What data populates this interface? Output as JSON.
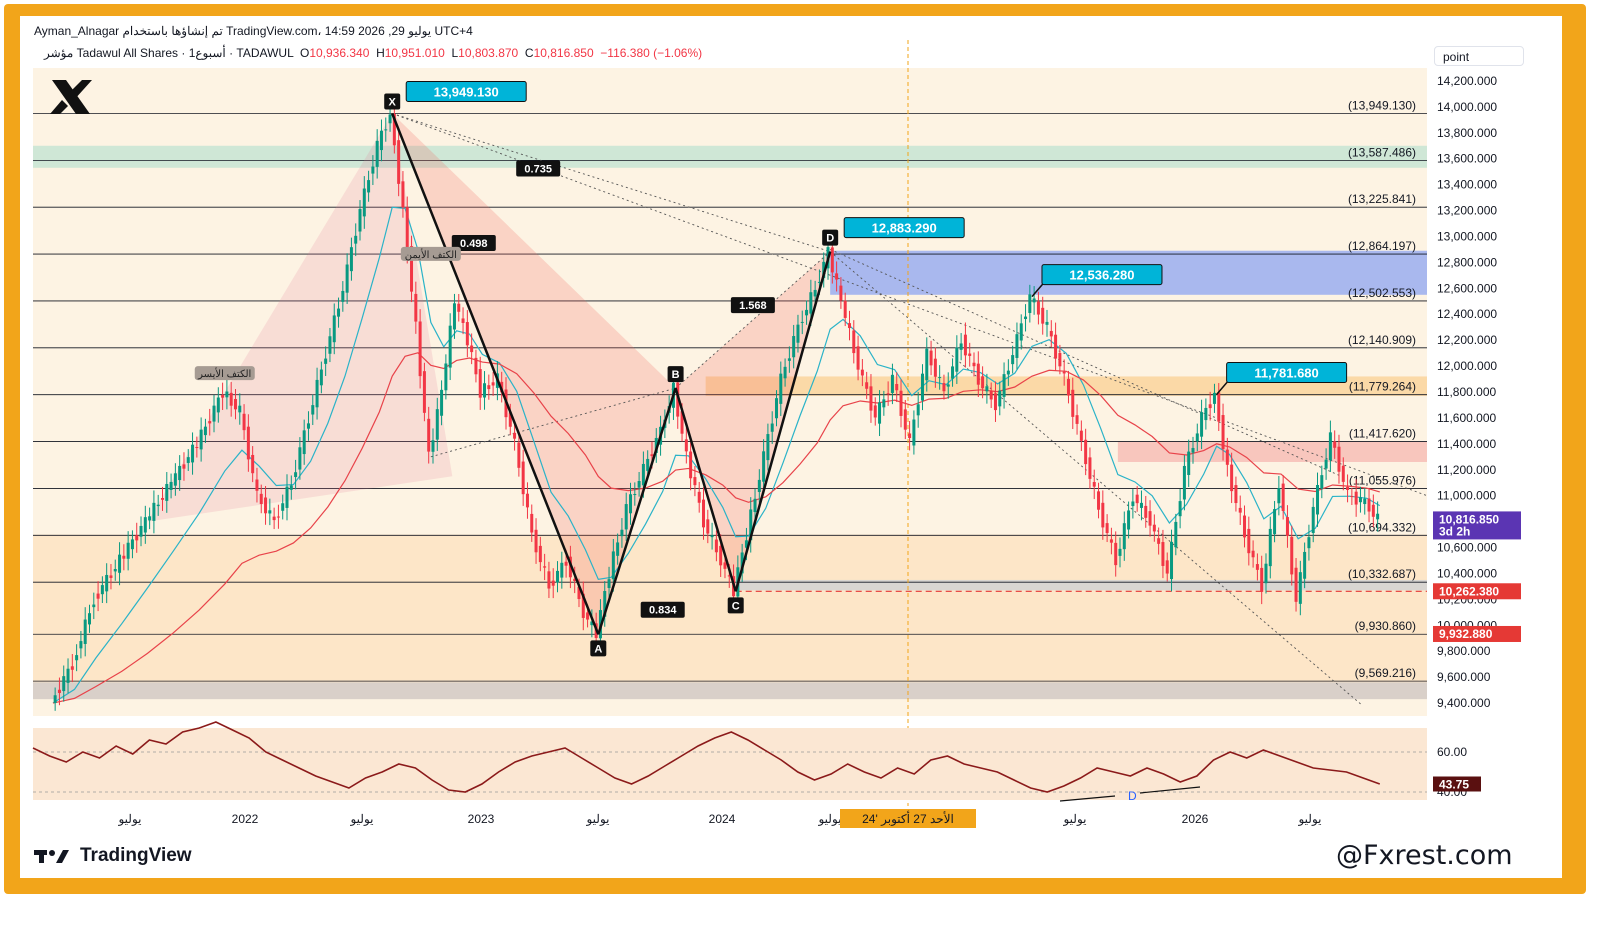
{
  "header": {
    "line1": "Ayman_Alnagar تم إنشاؤها باستخدام TradingView.com، 14:59 2026 ,29 يوليو UTC+4",
    "symbol": "مؤشر Tadawul All Shares · 1أسبوع · TADAWUL",
    "open_label": "O",
    "open": "10,936.340",
    "high_label": "H",
    "high": "10,951.010",
    "low_label": "L",
    "low": "10,803.870",
    "close_label": "C",
    "close": "10,816.850",
    "change": "−116.380 (−1.06%)"
  },
  "unit_selector": "point",
  "brand": "TradingView",
  "watermark": "@Fxrest.com",
  "colors": {
    "frame": "#f2a51a",
    "label_bg": "#00b4d8",
    "up": "#089981",
    "down": "#f23645",
    "ema_fast": "#2ab3c8",
    "ema_slow": "#e8434a",
    "rsi": "#8b1a1a",
    "price_tag": "#5b35b3",
    "red_tag": "#e53935"
  },
  "chart_data": {
    "type": "line",
    "title": "Tadawul All Shares weekly",
    "x_ticks": [
      "يوليو",
      "2022",
      "يوليو",
      "2023",
      "يوليو",
      "2024",
      "يوليو",
      "يوليو",
      "2026",
      "يوليو"
    ],
    "y_ticks": [
      9400,
      9600,
      9800,
      10000,
      10200,
      10400,
      10600,
      10800,
      11000,
      11200,
      11400,
      11600,
      11800,
      12000,
      12200,
      12400,
      12600,
      12800,
      13000,
      13200,
      13400,
      13600,
      13800,
      14000,
      14200
    ],
    "y_tick_labels": [
      "9,400.000",
      "9,600.000",
      "9,800.000",
      "10,000.000",
      "10,200.000",
      "10,400.000",
      "10,600.000",
      "10,800.000",
      "11,000.000",
      "11,200.000",
      "11,400.000",
      "11,600.000",
      "11,800.000",
      "12,000.000",
      "12,200.000",
      "12,400.000",
      "12,600.000",
      "12,800.000",
      "13,000.000",
      "13,200.000",
      "13,400.000",
      "13,600.000",
      "13,800.000",
      "14,000.000",
      "14,200.000"
    ],
    "ylim": [
      9300,
      14300
    ],
    "levels": [
      "(13,949.130)",
      "(13,587.486)",
      "(13,225.841)",
      "(12,864.197)",
      "(12,502.553)",
      "(12,140.909)",
      "(11,779.264)",
      "(11,417.620)",
      "(11,055.976)",
      "(10,694.332)",
      "(10,332.687)",
      "(9,930.860)",
      "(9,569.216)"
    ],
    "level_values": [
      13949.13,
      13587.486,
      13225.841,
      12864.197,
      12502.553,
      12140.909,
      11779.264,
      11417.62,
      11055.976,
      10694.332,
      10332.687,
      9930.86,
      9569.216
    ],
    "price_points": [
      {
        "x": 0,
        "y": 9400
      },
      {
        "x": 5,
        "y": 9700
      },
      {
        "x": 10,
        "y": 10200
      },
      {
        "x": 16,
        "y": 10500
      },
      {
        "x": 22,
        "y": 10800
      },
      {
        "x": 28,
        "y": 11100
      },
      {
        "x": 34,
        "y": 11400
      },
      {
        "x": 40,
        "y": 11800
      },
      {
        "x": 44,
        "y": 11650
      },
      {
        "x": 48,
        "y": 11000
      },
      {
        "x": 52,
        "y": 10800
      },
      {
        "x": 56,
        "y": 11100
      },
      {
        "x": 60,
        "y": 11600
      },
      {
        "x": 64,
        "y": 12100
      },
      {
        "x": 68,
        "y": 12600
      },
      {
        "x": 72,
        "y": 13200
      },
      {
        "x": 76,
        "y": 13700
      },
      {
        "x": 79,
        "y": 13949
      },
      {
        "x": 82,
        "y": 13200
      },
      {
        "x": 85,
        "y": 12300
      },
      {
        "x": 88,
        "y": 11300
      },
      {
        "x": 91,
        "y": 11800
      },
      {
        "x": 94,
        "y": 12500
      },
      {
        "x": 97,
        "y": 12200
      },
      {
        "x": 100,
        "y": 11800
      },
      {
        "x": 104,
        "y": 11900
      },
      {
        "x": 108,
        "y": 11400
      },
      {
        "x": 112,
        "y": 10700
      },
      {
        "x": 116,
        "y": 10300
      },
      {
        "x": 120,
        "y": 10500
      },
      {
        "x": 124,
        "y": 10100
      },
      {
        "x": 127,
        "y": 9930
      },
      {
        "x": 130,
        "y": 10400
      },
      {
        "x": 134,
        "y": 10900
      },
      {
        "x": 138,
        "y": 11200
      },
      {
        "x": 142,
        "y": 11500
      },
      {
        "x": 145,
        "y": 11830
      },
      {
        "x": 148,
        "y": 11300
      },
      {
        "x": 152,
        "y": 10800
      },
      {
        "x": 156,
        "y": 10500
      },
      {
        "x": 159,
        "y": 10262
      },
      {
        "x": 162,
        "y": 10700
      },
      {
        "x": 166,
        "y": 11300
      },
      {
        "x": 170,
        "y": 11900
      },
      {
        "x": 174,
        "y": 12300
      },
      {
        "x": 178,
        "y": 12600
      },
      {
        "x": 181,
        "y": 12883
      },
      {
        "x": 184,
        "y": 12500
      },
      {
        "x": 188,
        "y": 12000
      },
      {
        "x": 192,
        "y": 11600
      },
      {
        "x": 196,
        "y": 11900
      },
      {
        "x": 200,
        "y": 11400
      },
      {
        "x": 204,
        "y": 12100
      },
      {
        "x": 208,
        "y": 11800
      },
      {
        "x": 212,
        "y": 12200
      },
      {
        "x": 216,
        "y": 11900
      },
      {
        "x": 220,
        "y": 11700
      },
      {
        "x": 224,
        "y": 12100
      },
      {
        "x": 228,
        "y": 12536
      },
      {
        "x": 232,
        "y": 12300
      },
      {
        "x": 236,
        "y": 11900
      },
      {
        "x": 240,
        "y": 11400
      },
      {
        "x": 244,
        "y": 10900
      },
      {
        "x": 248,
        "y": 10500
      },
      {
        "x": 252,
        "y": 11000
      },
      {
        "x": 256,
        "y": 10800
      },
      {
        "x": 260,
        "y": 10400
      },
      {
        "x": 264,
        "y": 11200
      },
      {
        "x": 268,
        "y": 11600
      },
      {
        "x": 271,
        "y": 11781
      },
      {
        "x": 274,
        "y": 11200
      },
      {
        "x": 278,
        "y": 10700
      },
      {
        "x": 282,
        "y": 10300
      },
      {
        "x": 286,
        "y": 11100
      },
      {
        "x": 290,
        "y": 10200
      },
      {
        "x": 294,
        "y": 10900
      },
      {
        "x": 298,
        "y": 11450
      },
      {
        "x": 302,
        "y": 11000
      },
      {
        "x": 306,
        "y": 10950
      },
      {
        "x": 309,
        "y": 10817
      }
    ],
    "pattern_points": [
      {
        "label": "X",
        "price_label": "13,949.130"
      },
      {
        "label": "A"
      },
      {
        "label": "B"
      },
      {
        "label": "C"
      },
      {
        "label": "D",
        "price_label": "12,883.290"
      }
    ],
    "ratios": [
      "0.735",
      "0.498",
      "1.568",
      "0.834"
    ],
    "callouts": [
      "12,536.280",
      "11,781.680"
    ],
    "pattern_text": [
      "الكتف الأيسر",
      "الكتف الأيمن"
    ],
    "price_tags": {
      "last": "10,816.850",
      "countdown": "3d 2h",
      "red1": "10,262.380",
      "red2": "9,932.880"
    },
    "date_tag": "الأحد 27 أكتوبر '24",
    "rsi": {
      "ticks": [
        "60.00",
        "40.00"
      ],
      "value": "43.75",
      "divergence_label": "D",
      "values": [
        62,
        58,
        55,
        60,
        57,
        63,
        59,
        66,
        64,
        70,
        72,
        75,
        71,
        67,
        60,
        56,
        52,
        48,
        45,
        42,
        47,
        50,
        54,
        52,
        46,
        41,
        40,
        44,
        50,
        55,
        58,
        60,
        62,
        57,
        52,
        47,
        44,
        48,
        53,
        58,
        63,
        67,
        70,
        66,
        61,
        56,
        50,
        46,
        49,
        54,
        50,
        47,
        52,
        49,
        56,
        58,
        54,
        52,
        50,
        46,
        42,
        40,
        43,
        47,
        52,
        50,
        48,
        52,
        49,
        45,
        48,
        56,
        60,
        57,
        61,
        58,
        55,
        52,
        51,
        50,
        47,
        44
      ]
    }
  }
}
